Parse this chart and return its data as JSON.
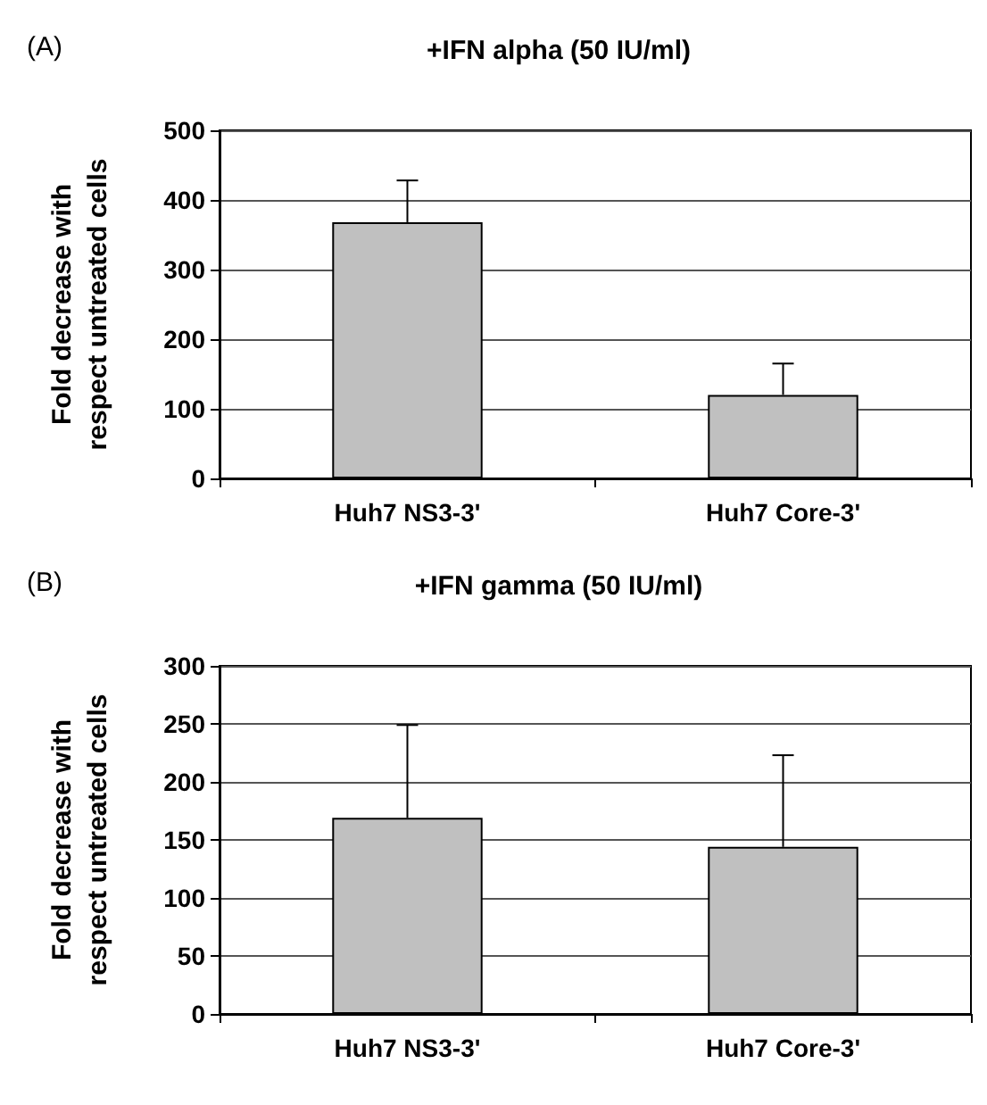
{
  "chart_data": [
    {
      "type": "bar",
      "title": "+IFN alpha (50 IU/ml)",
      "annotations": [
        "(A)"
      ],
      "ylabel": "Fold decrease with respect untreated cells",
      "categories": [
        "Huh7 NS3-3'",
        "Huh7 Core-3'"
      ],
      "series": [
        {
          "color": "#c0c0c0",
          "values": [
            368,
            120
          ],
          "errors": [
            [
              368,
              428
            ],
            [
              120,
              165
            ]
          ]
        }
      ],
      "ylim": [
        0,
        500
      ],
      "yticks": [
        0,
        100,
        200,
        300,
        400,
        500
      ],
      "grid": "y"
    },
    {
      "type": "bar",
      "title": "+IFN gamma (50 IU/ml)",
      "annotations": [
        "(B)"
      ],
      "ylabel": "Fold decrease with respect untreated cells",
      "categories": [
        "Huh7 NS3-3'",
        "Huh7 Core-3'"
      ],
      "series": [
        {
          "color": "#c0c0c0",
          "values": [
            169,
            144
          ],
          "errors": [
            [
              169,
              249
            ],
            [
              144,
              223
            ]
          ]
        }
      ],
      "ylim": [
        0,
        300
      ],
      "yticks": [
        0,
        50,
        100,
        150,
        200,
        250,
        300
      ],
      "grid": "y"
    }
  ]
}
